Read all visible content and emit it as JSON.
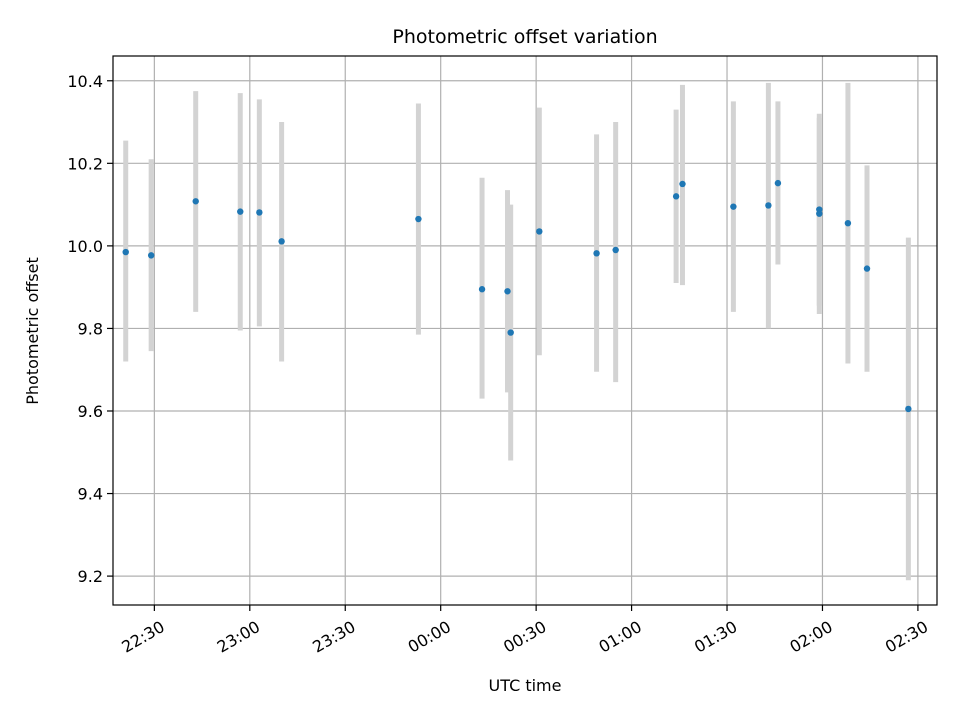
{
  "chart_data": {
    "type": "scatter",
    "title": "Photometric offset variation",
    "xlabel": "UTC time",
    "ylabel": "Photometric offset",
    "xlim": [
      "22:17",
      "02:36"
    ],
    "ylim": [
      9.13,
      10.46
    ],
    "x_ticks": [
      "22:30",
      "23:00",
      "23:30",
      "00:00",
      "00:30",
      "01:00",
      "01:30",
      "02:00",
      "02:30"
    ],
    "y_ticks": [
      9.2,
      9.4,
      9.6,
      9.8,
      10.0,
      10.2,
      10.4
    ],
    "y_tick_labels": [
      "9.2",
      "9.4",
      "9.6",
      "9.8",
      "10.0",
      "10.2",
      "10.4"
    ],
    "grid": true,
    "marker_color": "#1f77b4",
    "errorbar_color": "#d3d3d3",
    "points": [
      {
        "x": "22:21",
        "y": 9.985,
        "ylow": 9.72,
        "yhigh": 10.255
      },
      {
        "x": "22:29",
        "y": 9.977,
        "ylow": 9.745,
        "yhigh": 10.21
      },
      {
        "x": "22:43",
        "y": 10.108,
        "ylow": 9.84,
        "yhigh": 10.375
      },
      {
        "x": "22:57",
        "y": 10.083,
        "ylow": 9.795,
        "yhigh": 10.37
      },
      {
        "x": "23:03",
        "y": 10.081,
        "ylow": 9.805,
        "yhigh": 10.355
      },
      {
        "x": "23:10",
        "y": 10.011,
        "ylow": 9.72,
        "yhigh": 10.3
      },
      {
        "x": "23:53",
        "y": 10.065,
        "ylow": 9.785,
        "yhigh": 10.345
      },
      {
        "x": "00:13",
        "y": 9.895,
        "ylow": 9.63,
        "yhigh": 10.165
      },
      {
        "x": "00:21",
        "y": 9.89,
        "ylow": 9.645,
        "yhigh": 10.135
      },
      {
        "x": "00:22",
        "y": 9.79,
        "ylow": 9.48,
        "yhigh": 10.1
      },
      {
        "x": "00:31",
        "y": 10.035,
        "ylow": 9.735,
        "yhigh": 10.335
      },
      {
        "x": "00:49",
        "y": 9.982,
        "ylow": 9.695,
        "yhigh": 10.27
      },
      {
        "x": "00:55",
        "y": 9.99,
        "ylow": 9.67,
        "yhigh": 10.3
      },
      {
        "x": "01:14",
        "y": 10.12,
        "ylow": 9.91,
        "yhigh": 10.33
      },
      {
        "x": "01:16",
        "y": 10.15,
        "ylow": 9.905,
        "yhigh": 10.39
      },
      {
        "x": "01:32",
        "y": 10.095,
        "ylow": 9.84,
        "yhigh": 10.35
      },
      {
        "x": "01:43",
        "y": 10.098,
        "ylow": 9.8,
        "yhigh": 10.395
      },
      {
        "x": "01:46",
        "y": 10.152,
        "ylow": 9.955,
        "yhigh": 10.35
      },
      {
        "x": "01:59",
        "y": 10.088,
        "ylow": 9.855,
        "yhigh": 10.32
      },
      {
        "x": "01:59",
        "y": 10.078,
        "ylow": 9.835,
        "yhigh": 10.31
      },
      {
        "x": "02:08",
        "y": 10.055,
        "ylow": 9.715,
        "yhigh": 10.395
      },
      {
        "x": "02:14",
        "y": 9.945,
        "ylow": 9.695,
        "yhigh": 10.195
      },
      {
        "x": "02:27",
        "y": 9.605,
        "ylow": 9.19,
        "yhigh": 10.02
      }
    ]
  }
}
